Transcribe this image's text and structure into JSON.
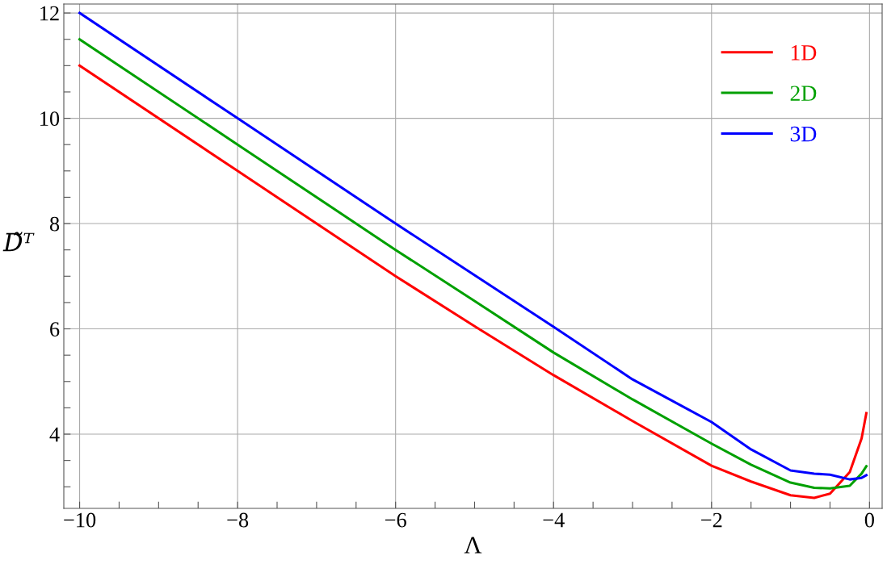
{
  "chart_data": {
    "type": "line",
    "xlabel": "Λ",
    "ylabel": "D̃ᵀ",
    "xlim": [
      -10.2,
      0.16
    ],
    "ylim": [
      2.59,
      12.17
    ],
    "xticks": [
      {
        "value": -10,
        "label": "−10"
      },
      {
        "value": -9.5,
        "label": null
      },
      {
        "value": -9,
        "label": null
      },
      {
        "value": -8.5,
        "label": null
      },
      {
        "value": -8,
        "label": "−8"
      },
      {
        "value": -7.5,
        "label": null
      },
      {
        "value": -7,
        "label": null
      },
      {
        "value": -6.5,
        "label": null
      },
      {
        "value": -6,
        "label": "−6"
      },
      {
        "value": -5.5,
        "label": null
      },
      {
        "value": -5,
        "label": null
      },
      {
        "value": -4.5,
        "label": null
      },
      {
        "value": -4,
        "label": "−4"
      },
      {
        "value": -3.5,
        "label": null
      },
      {
        "value": -3,
        "label": null
      },
      {
        "value": -2.5,
        "label": null
      },
      {
        "value": -2,
        "label": "−2"
      },
      {
        "value": -1.5,
        "label": null
      },
      {
        "value": -1,
        "label": null
      },
      {
        "value": -0.5,
        "label": null
      },
      {
        "value": 0,
        "label": "0"
      }
    ],
    "yticks": [
      {
        "value": 3,
        "label": null
      },
      {
        "value": 3.5,
        "label": null
      },
      4,
      {
        "value": 4.5,
        "label": null
      },
      {
        "value": 5,
        "label": null
      },
      {
        "value": 5.5,
        "label": null
      },
      6,
      {
        "value": 6.5,
        "label": null
      },
      {
        "value": 7,
        "label": null
      },
      {
        "value": 7.5,
        "label": null
      },
      8,
      {
        "value": 8.5,
        "label": null
      },
      {
        "value": 9,
        "label": null
      },
      {
        "value": 9.5,
        "label": null
      },
      10,
      {
        "value": 10.5,
        "label": null
      },
      {
        "value": 11,
        "label": null
      },
      {
        "value": 11.5,
        "label": null
      },
      12
    ],
    "grid": true,
    "legend": "top right",
    "line_style": "solid",
    "marker": "none",
    "x": [
      -10,
      -8,
      -6,
      -5,
      -4,
      -3,
      -2,
      -1.5,
      -1,
      -0.7,
      -0.5,
      -0.25,
      -0.1,
      -0.04
    ],
    "series": [
      {
        "name": "1D",
        "color": "#ff0000",
        "values": [
          11,
          9,
          7,
          6.05,
          5.12,
          4.25,
          3.4,
          3.1,
          2.84,
          2.79,
          2.87,
          3.28,
          3.92,
          4.4
        ]
      },
      {
        "name": "2D",
        "color": "#00a000",
        "values": [
          11.5,
          9.5,
          7.5,
          6.53,
          5.55,
          4.66,
          3.82,
          3.42,
          3.08,
          2.98,
          2.97,
          3.02,
          3.25,
          3.39
        ]
      },
      {
        "name": "3D",
        "color": "#0000ff",
        "values": [
          12,
          10,
          8,
          7.02,
          6.04,
          5.04,
          4.23,
          3.71,
          3.31,
          3.25,
          3.23,
          3.14,
          3.17,
          3.22
        ]
      }
    ]
  }
}
